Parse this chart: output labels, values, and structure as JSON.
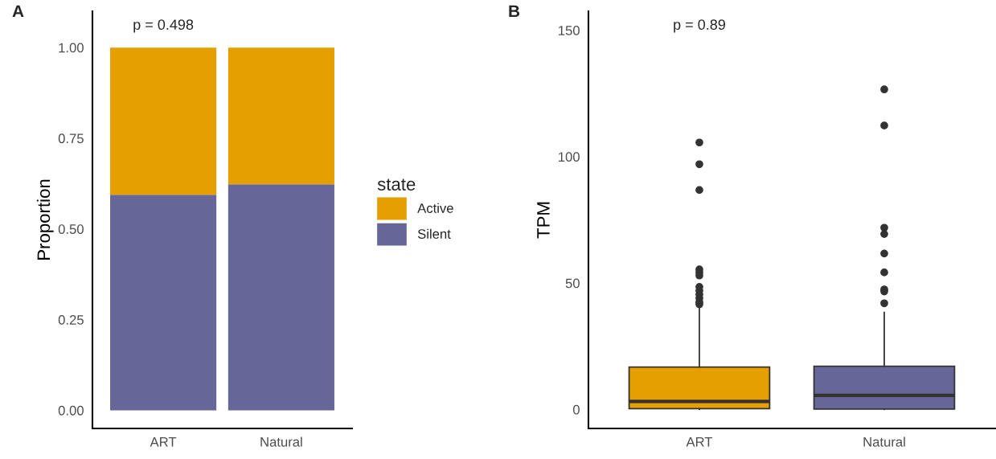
{
  "chart_data": [
    {
      "type": "bar",
      "title": "A",
      "ylabel": "Proportion",
      "legend_title": "state",
      "categories": [
        "ART",
        "Natural"
      ],
      "stacked": true,
      "ylim": [
        -0.05,
        1.1
      ],
      "yticks": [
        {
          "value": 0,
          "label": "0.00"
        },
        {
          "value": 0.25,
          "label": "0.25"
        },
        {
          "value": 0.5,
          "label": "0.50"
        },
        {
          "value": 0.75,
          "label": "0.75"
        },
        {
          "value": 1,
          "label": "1.00"
        }
      ],
      "grid": false,
      "legend": "right",
      "series": [
        {
          "name": "Silent",
          "color": "#666699",
          "values": [
            0.594,
            0.623
          ]
        },
        {
          "name": "Active",
          "color": "#e69f00",
          "values": [
            0.406,
            0.377
          ]
        }
      ],
      "annotations": [
        "p = 0.498"
      ]
    },
    {
      "type": "box",
      "title": "B",
      "ylabel": "TPM",
      "categories": [
        "ART",
        "Natural"
      ],
      "colors": [
        "#e69f00",
        "#666699"
      ],
      "ylim": [
        -7.5,
        157.5
      ],
      "yticks": [
        0,
        50,
        100,
        150
      ],
      "grid": false,
      "boxes": [
        {
          "low": 0,
          "q1": 0.3,
          "median": 3.2,
          "q3": 16.8,
          "high": 40.7,
          "outliers": [
            105.6,
            97,
            86.8,
            55.4,
            54.2,
            53,
            48.5,
            47,
            45.5,
            44,
            42.5,
            41.6
          ]
        },
        {
          "low": 0,
          "q1": 0.2,
          "median": 5.6,
          "q3": 17.1,
          "high": 38.5,
          "outliers": [
            126.6,
            112.3,
            71.9,
            69.4,
            61.7,
            54.2,
            47.5,
            46.7,
            42
          ]
        }
      ],
      "annotations": [
        "p = 0.89"
      ]
    }
  ]
}
